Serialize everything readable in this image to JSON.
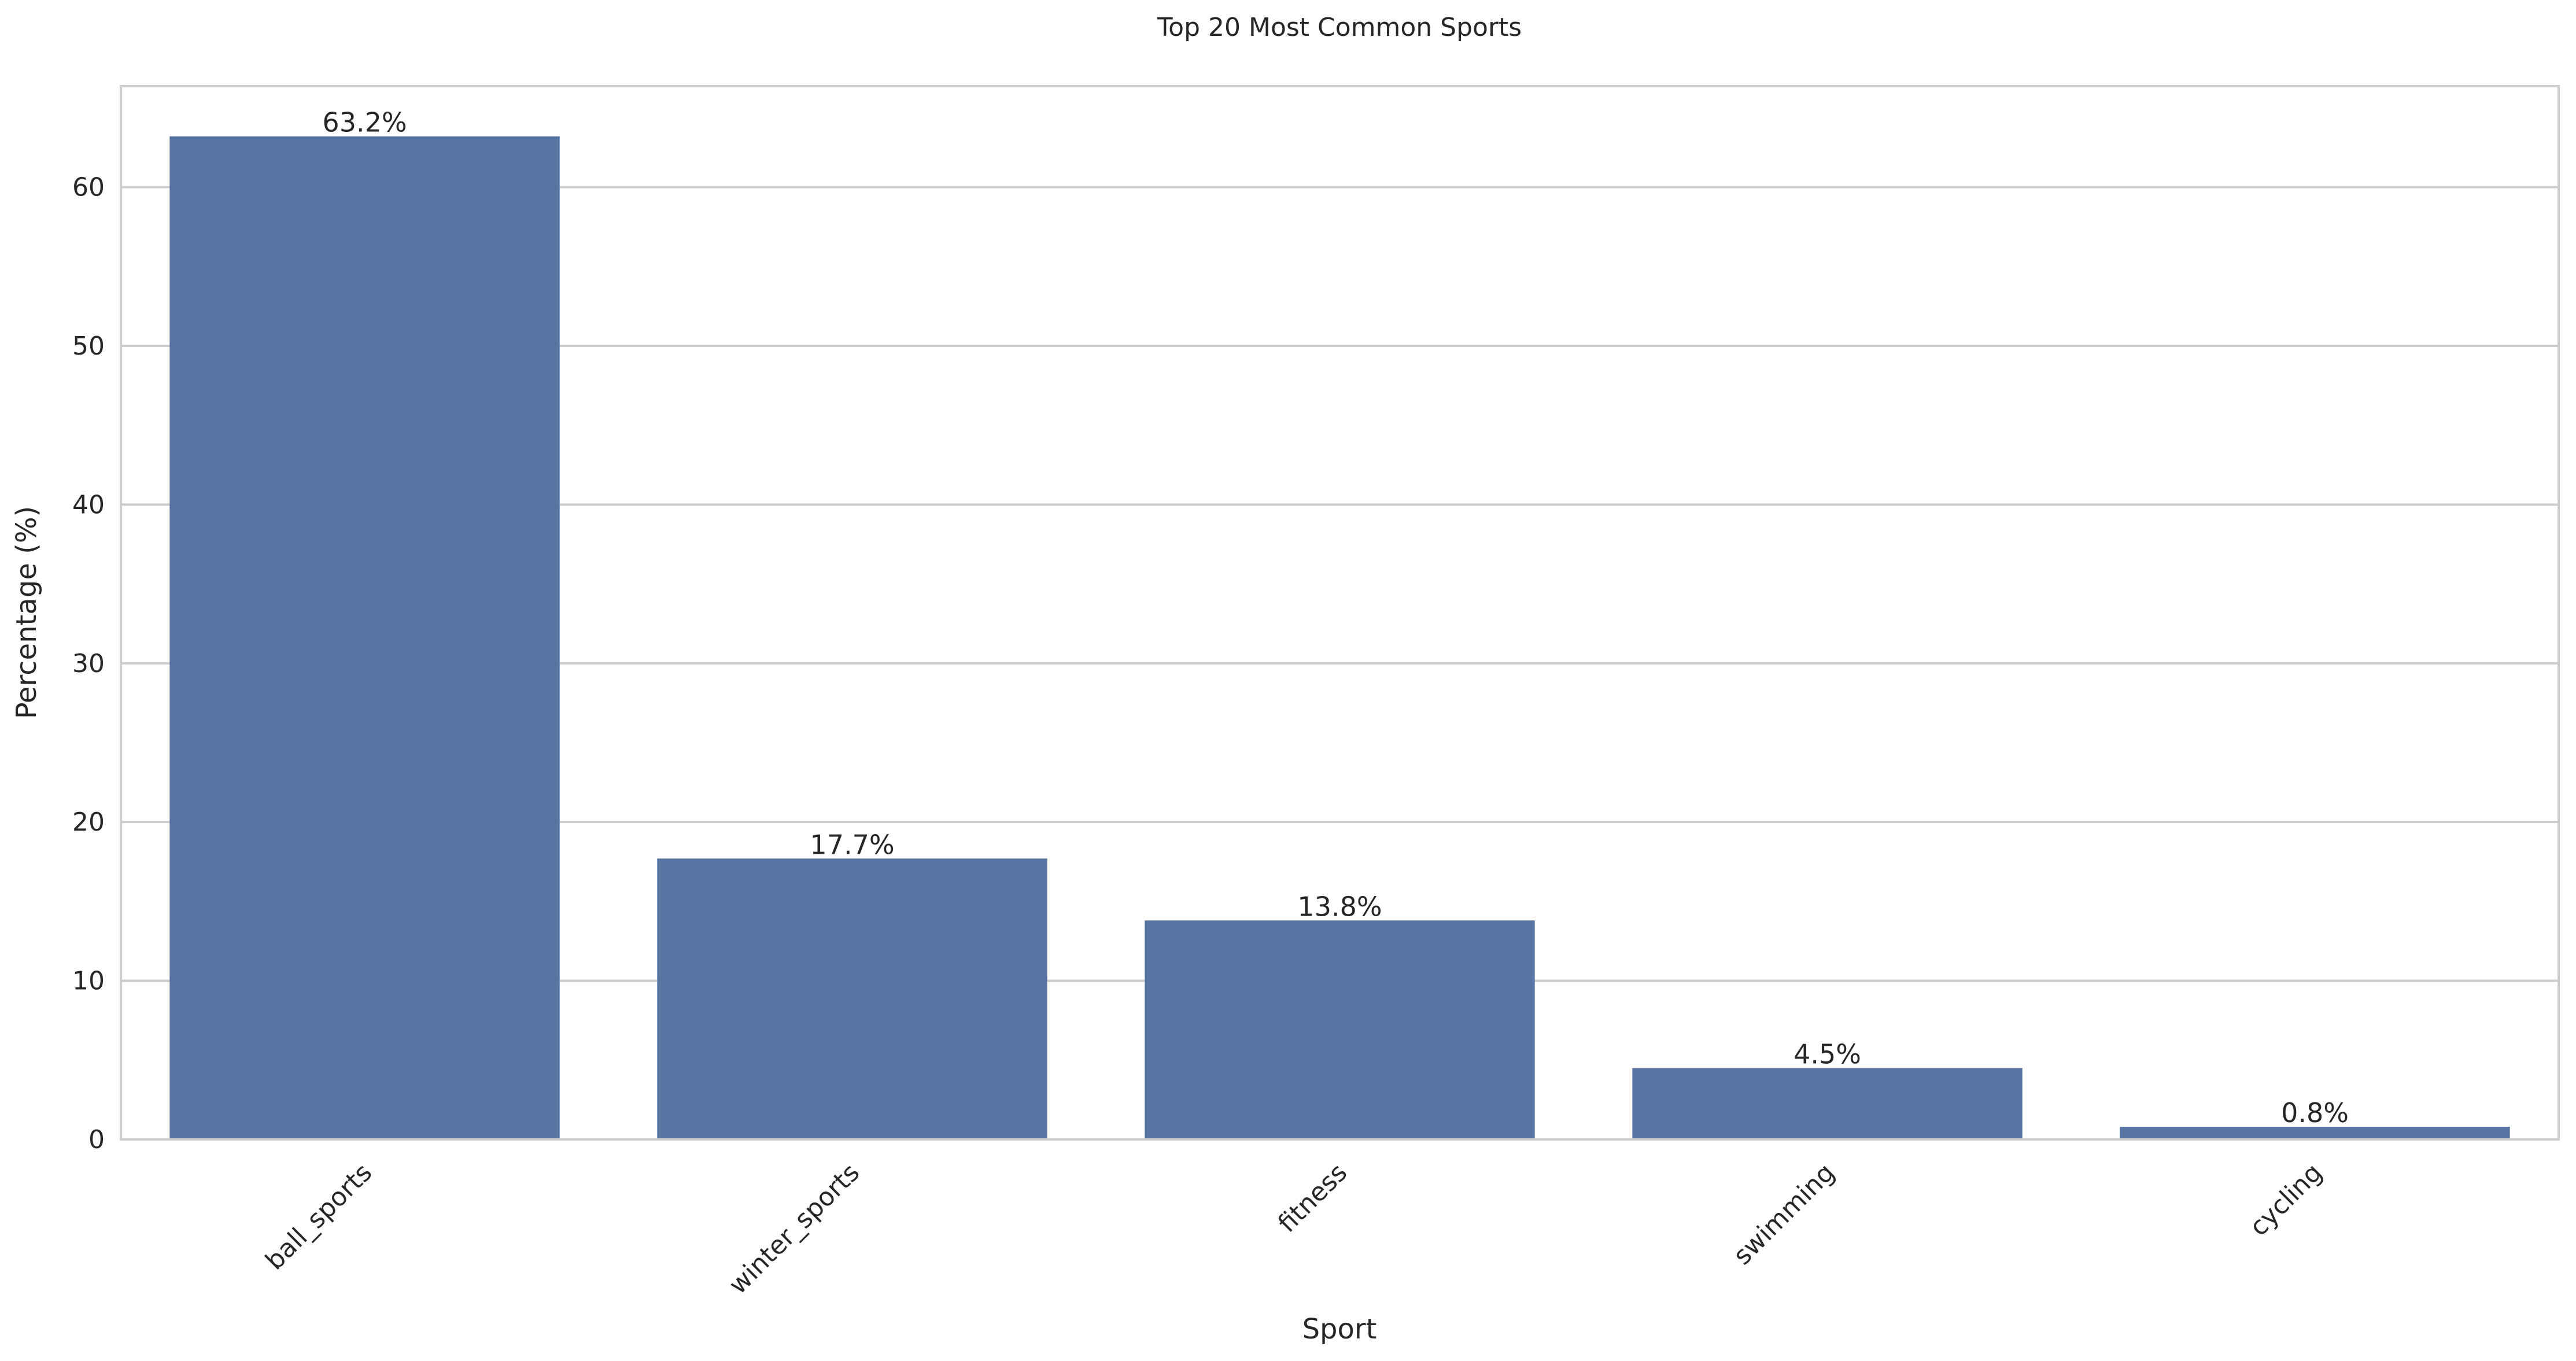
{
  "chart_data": {
    "type": "bar",
    "title": "Top 20 Most Common Sports",
    "xlabel": "Sport",
    "ylabel": "Percentage (%)",
    "categories": [
      "ball_sports",
      "winter_sports",
      "fitness",
      "swimming",
      "cycling"
    ],
    "values": [
      63.2,
      17.7,
      13.8,
      4.5,
      0.8
    ],
    "data_labels": [
      "63.2%",
      "17.7%",
      "13.8%",
      "4.5%",
      "0.8%"
    ],
    "yticks": [
      0,
      10,
      20,
      30,
      40,
      50,
      60
    ],
    "ylim": [
      0,
      66.36
    ],
    "grid": "horizontal",
    "bar_color": "#5975a4",
    "xtick_rotation": "45 degrees"
  }
}
